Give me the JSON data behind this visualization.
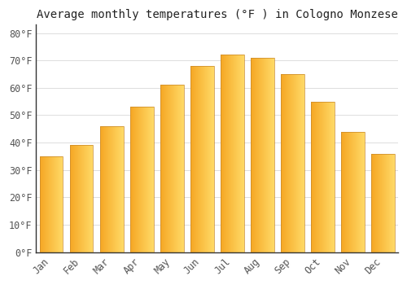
{
  "title": "Average monthly temperatures (°F ) in Cologno Monzese",
  "months": [
    "Jan",
    "Feb",
    "Mar",
    "Apr",
    "May",
    "Jun",
    "Jul",
    "Aug",
    "Sep",
    "Oct",
    "Nov",
    "Dec"
  ],
  "values": [
    35,
    39,
    46,
    53,
    61,
    68,
    72,
    71,
    65,
    55,
    44,
    36
  ],
  "bar_color_left": "#F5A623",
  "bar_color_right": "#FFD966",
  "background_color": "#FFFFFF",
  "grid_color": "#DDDDDD",
  "ylim": [
    0,
    83
  ],
  "yticks": [
    0,
    10,
    20,
    30,
    40,
    50,
    60,
    70,
    80
  ],
  "title_fontsize": 10,
  "tick_fontsize": 8.5,
  "bar_width": 0.78
}
